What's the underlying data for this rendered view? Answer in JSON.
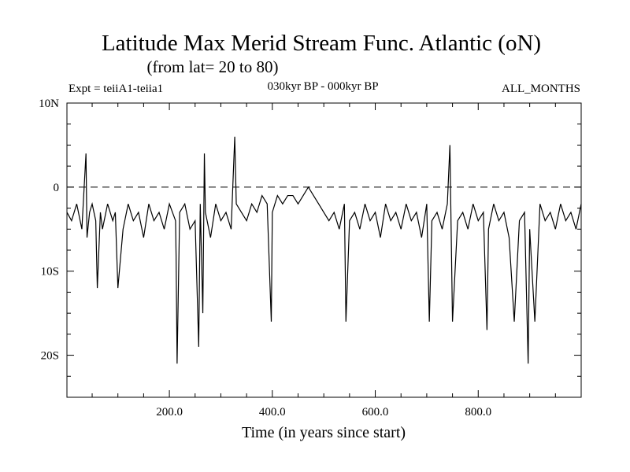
{
  "chart_data": {
    "type": "line",
    "title": "Latitude Max Merid Stream Func. Atlantic (oN)",
    "subtitle": "(from lat= 20 to 80)",
    "experiment": "Expt = teiiA1-teiia1",
    "period": "030kyr BP - 000kyr BP",
    "season": "ALL_MONTHS",
    "xlabel": "Time (in years since start)",
    "ylabel": "",
    "xlim": [
      1,
      1000
    ],
    "ylim": [
      -25,
      10
    ],
    "x_ticks": [
      200,
      400,
      600,
      800
    ],
    "x_tick_labels": [
      "200.0",
      "400.0",
      "600.0",
      "800.0"
    ],
    "y_ticks": [
      10,
      0,
      -10,
      -20
    ],
    "y_tick_labels": [
      "10N",
      "0",
      "10S",
      "20S"
    ],
    "reference_line": {
      "y": 0,
      "style": "dashed"
    },
    "series": [
      {
        "x": [
          1,
          10,
          20,
          30,
          38,
          40,
          45,
          50,
          57,
          60,
          66,
          70,
          80,
          90,
          95,
          100,
          110,
          120,
          130,
          140,
          150,
          160,
          170,
          180,
          190,
          200,
          212,
          213,
          215,
          220,
          230,
          240,
          250,
          257,
          260,
          265,
          268,
          270,
          280,
          290,
          300,
          310,
          320,
          327,
          330,
          340,
          350,
          360,
          370,
          380,
          390,
          398,
          400,
          410,
          420,
          430,
          440,
          450,
          460,
          470,
          480,
          490,
          500,
          510,
          520,
          530,
          540,
          543,
          550,
          560,
          570,
          580,
          590,
          600,
          610,
          620,
          630,
          640,
          650,
          660,
          670,
          680,
          690,
          700,
          705,
          710,
          720,
          730,
          740,
          745,
          750,
          760,
          770,
          780,
          790,
          800,
          810,
          817,
          820,
          830,
          840,
          850,
          860,
          870,
          880,
          890,
          897,
          900,
          910,
          920,
          930,
          940,
          950,
          960,
          970,
          980,
          990,
          1000
        ],
        "y": [
          -3,
          -4,
          -2,
          -5,
          4,
          -6,
          -3,
          -2,
          -4,
          -12,
          -3,
          -5,
          -2,
          -4,
          -3,
          -12,
          -5,
          -2,
          -4,
          -3,
          -6,
          -2,
          -4,
          -3,
          -5,
          -2,
          -4,
          -8,
          -21,
          -3,
          -2,
          -5,
          -4,
          -19,
          -2,
          -15,
          4,
          -3,
          -6,
          -2,
          -4,
          -3,
          -5,
          6,
          -2,
          -3,
          -4,
          -2,
          -3,
          -1,
          -2,
          -16,
          -3,
          -1,
          -2,
          -1,
          -1,
          -2,
          -1,
          0,
          -1,
          -2,
          -3,
          -4,
          -3,
          -5,
          -2,
          -16,
          -4,
          -3,
          -5,
          -2,
          -4,
          -3,
          -6,
          -2,
          -4,
          -3,
          -5,
          -2,
          -4,
          -3,
          -6,
          -2,
          -16,
          -4,
          -3,
          -5,
          -2,
          5,
          -16,
          -4,
          -3,
          -5,
          -2,
          -4,
          -3,
          -17,
          -5,
          -2,
          -4,
          -3,
          -6,
          -16,
          -4,
          -3,
          -21,
          -5,
          -16,
          -2,
          -4,
          -3,
          -5,
          -2,
          -4,
          -3,
          -5,
          -2
        ]
      }
    ]
  }
}
